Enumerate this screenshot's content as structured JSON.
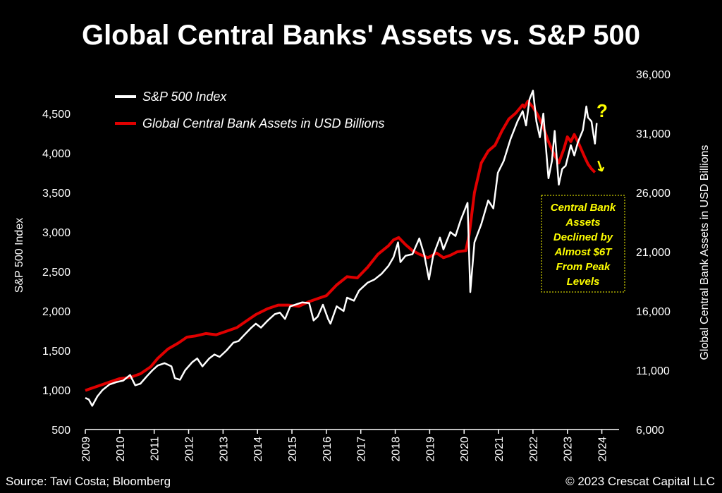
{
  "colors": {
    "background": "#000000",
    "sp500": "#ffffff",
    "cb_assets": "#e00000",
    "annotation": "#ffff00"
  },
  "footer": {
    "source": "Source: Tavi Costa; Bloomberg",
    "copyright": "© 2023 Crescat Capital LLC"
  },
  "chart_data": {
    "type": "line",
    "title": "Global Central Banks' Assets vs. S&P 500",
    "ylabel_left": "S&P 500 Index",
    "ylabel_right": "Global Central Bank Assets in USD Billions",
    "xlim": [
      2009,
      2024.5
    ],
    "ylim_left": [
      500,
      5000
    ],
    "ylim_right": [
      6000,
      36000
    ],
    "x_ticks": [
      "2009",
      "2010",
      "2011",
      "2012",
      "2013",
      "2014",
      "2015",
      "2016",
      "2017",
      "2018",
      "2019",
      "2020",
      "2021",
      "2022",
      "2023",
      "2024"
    ],
    "y_ticks_left": [
      "500",
      "1,000",
      "1,500",
      "2,000",
      "2,500",
      "3,000",
      "3,500",
      "4,000",
      "4,500"
    ],
    "y_ticks_right": [
      "6,000",
      "11,000",
      "16,000",
      "21,000",
      "26,000",
      "31,000",
      "36,000"
    ],
    "grid": false,
    "legend_position": "top-left",
    "annotations": {
      "question_mark": "?",
      "arrow": "↓",
      "box_text": [
        "Central Bank",
        "Assets",
        "Declined by",
        "Almost $6T",
        "From Peak",
        "Levels"
      ]
    },
    "series": [
      {
        "name": "S&P 500 Index",
        "axis": "left",
        "color": "#ffffff",
        "points": [
          [
            2009.0,
            900
          ],
          [
            2009.1,
            880
          ],
          [
            2009.2,
            800
          ],
          [
            2009.35,
            920
          ],
          [
            2009.5,
            1000
          ],
          [
            2009.7,
            1070
          ],
          [
            2009.9,
            1100
          ],
          [
            2010.1,
            1120
          ],
          [
            2010.3,
            1190
          ],
          [
            2010.45,
            1060
          ],
          [
            2010.6,
            1080
          ],
          [
            2010.8,
            1180
          ],
          [
            2010.95,
            1250
          ],
          [
            2011.1,
            1310
          ],
          [
            2011.3,
            1340
          ],
          [
            2011.5,
            1300
          ],
          [
            2011.6,
            1150
          ],
          [
            2011.75,
            1130
          ],
          [
            2011.9,
            1250
          ],
          [
            2012.1,
            1350
          ],
          [
            2012.25,
            1400
          ],
          [
            2012.4,
            1300
          ],
          [
            2012.6,
            1400
          ],
          [
            2012.75,
            1450
          ],
          [
            2012.9,
            1420
          ],
          [
            2013.1,
            1500
          ],
          [
            2013.3,
            1600
          ],
          [
            2013.45,
            1620
          ],
          [
            2013.6,
            1690
          ],
          [
            2013.8,
            1780
          ],
          [
            2013.95,
            1840
          ],
          [
            2014.1,
            1790
          ],
          [
            2014.3,
            1880
          ],
          [
            2014.5,
            1960
          ],
          [
            2014.65,
            1980
          ],
          [
            2014.8,
            1900
          ],
          [
            2014.95,
            2060
          ],
          [
            2015.1,
            2080
          ],
          [
            2015.3,
            2110
          ],
          [
            2015.5,
            2100
          ],
          [
            2015.63,
            1880
          ],
          [
            2015.75,
            1930
          ],
          [
            2015.9,
            2080
          ],
          [
            2016.05,
            1900
          ],
          [
            2016.12,
            1840
          ],
          [
            2016.3,
            2060
          ],
          [
            2016.5,
            2000
          ],
          [
            2016.6,
            2170
          ],
          [
            2016.8,
            2130
          ],
          [
            2016.95,
            2260
          ],
          [
            2017.2,
            2360
          ],
          [
            2017.4,
            2400
          ],
          [
            2017.6,
            2470
          ],
          [
            2017.8,
            2570
          ],
          [
            2017.95,
            2680
          ],
          [
            2018.08,
            2870
          ],
          [
            2018.15,
            2620
          ],
          [
            2018.3,
            2700
          ],
          [
            2018.5,
            2720
          ],
          [
            2018.7,
            2920
          ],
          [
            2018.85,
            2700
          ],
          [
            2018.98,
            2400
          ],
          [
            2019.1,
            2700
          ],
          [
            2019.3,
            2930
          ],
          [
            2019.4,
            2780
          ],
          [
            2019.6,
            3000
          ],
          [
            2019.75,
            2950
          ],
          [
            2019.9,
            3150
          ],
          [
            2020.1,
            3370
          ],
          [
            2020.18,
            2240
          ],
          [
            2020.3,
            2870
          ],
          [
            2020.5,
            3100
          ],
          [
            2020.7,
            3400
          ],
          [
            2020.85,
            3300
          ],
          [
            2020.98,
            3750
          ],
          [
            2021.15,
            3900
          ],
          [
            2021.35,
            4180
          ],
          [
            2021.55,
            4400
          ],
          [
            2021.7,
            4530
          ],
          [
            2021.8,
            4350
          ],
          [
            2021.9,
            4680
          ],
          [
            2022.0,
            4790
          ],
          [
            2022.1,
            4400
          ],
          [
            2022.2,
            4200
          ],
          [
            2022.3,
            4500
          ],
          [
            2022.4,
            3950
          ],
          [
            2022.45,
            3680
          ],
          [
            2022.55,
            3900
          ],
          [
            2022.63,
            4280
          ],
          [
            2022.75,
            3600
          ],
          [
            2022.85,
            3800
          ],
          [
            2022.95,
            3840
          ],
          [
            2023.1,
            4100
          ],
          [
            2023.2,
            3970
          ],
          [
            2023.3,
            4130
          ],
          [
            2023.45,
            4290
          ],
          [
            2023.55,
            4590
          ],
          [
            2023.6,
            4450
          ],
          [
            2023.7,
            4400
          ],
          [
            2023.75,
            4250
          ],
          [
            2023.8,
            4120
          ],
          [
            2023.85,
            4380
          ]
        ]
      },
      {
        "name": "Global Central Bank Assets in USD Billions",
        "axis": "right",
        "color": "#e00000",
        "points": [
          [
            2009.0,
            9300
          ],
          [
            2009.3,
            9600
          ],
          [
            2009.7,
            10000
          ],
          [
            2010.0,
            10300
          ],
          [
            2010.3,
            10400
          ],
          [
            2010.6,
            10700
          ],
          [
            2010.9,
            11300
          ],
          [
            2011.1,
            12000
          ],
          [
            2011.4,
            12800
          ],
          [
            2011.7,
            13300
          ],
          [
            2011.95,
            13800
          ],
          [
            2012.2,
            13900
          ],
          [
            2012.5,
            14100
          ],
          [
            2012.8,
            14000
          ],
          [
            2013.1,
            14300
          ],
          [
            2013.4,
            14600
          ],
          [
            2013.7,
            15200
          ],
          [
            2013.95,
            15700
          ],
          [
            2014.3,
            16200
          ],
          [
            2014.6,
            16500
          ],
          [
            2014.9,
            16500
          ],
          [
            2015.2,
            16400
          ],
          [
            2015.5,
            16800
          ],
          [
            2015.8,
            17100
          ],
          [
            2016.0,
            17300
          ],
          [
            2016.3,
            18200
          ],
          [
            2016.6,
            18900
          ],
          [
            2016.9,
            18800
          ],
          [
            2017.2,
            19700
          ],
          [
            2017.5,
            20800
          ],
          [
            2017.8,
            21500
          ],
          [
            2017.95,
            22000
          ],
          [
            2018.1,
            22200
          ],
          [
            2018.3,
            21600
          ],
          [
            2018.5,
            21100
          ],
          [
            2018.7,
            20800
          ],
          [
            2018.95,
            20500
          ],
          [
            2019.2,
            20900
          ],
          [
            2019.4,
            20500
          ],
          [
            2019.6,
            20700
          ],
          [
            2019.8,
            21000
          ],
          [
            2020.05,
            21100
          ],
          [
            2020.15,
            22500
          ],
          [
            2020.3,
            26000
          ],
          [
            2020.5,
            28500
          ],
          [
            2020.7,
            29500
          ],
          [
            2020.9,
            30000
          ],
          [
            2021.1,
            31200
          ],
          [
            2021.3,
            32200
          ],
          [
            2021.5,
            32700
          ],
          [
            2021.7,
            33400
          ],
          [
            2021.75,
            33200
          ],
          [
            2021.85,
            33700
          ],
          [
            2022.0,
            33200
          ],
          [
            2022.15,
            32500
          ],
          [
            2022.3,
            31500
          ],
          [
            2022.45,
            30300
          ],
          [
            2022.6,
            29300
          ],
          [
            2022.75,
            28500
          ],
          [
            2022.9,
            29700
          ],
          [
            2023.0,
            30700
          ],
          [
            2023.1,
            30300
          ],
          [
            2023.2,
            30900
          ],
          [
            2023.35,
            30000
          ],
          [
            2023.5,
            29000
          ],
          [
            2023.6,
            28400
          ],
          [
            2023.7,
            28000
          ],
          [
            2023.8,
            27700
          ]
        ]
      }
    ]
  }
}
